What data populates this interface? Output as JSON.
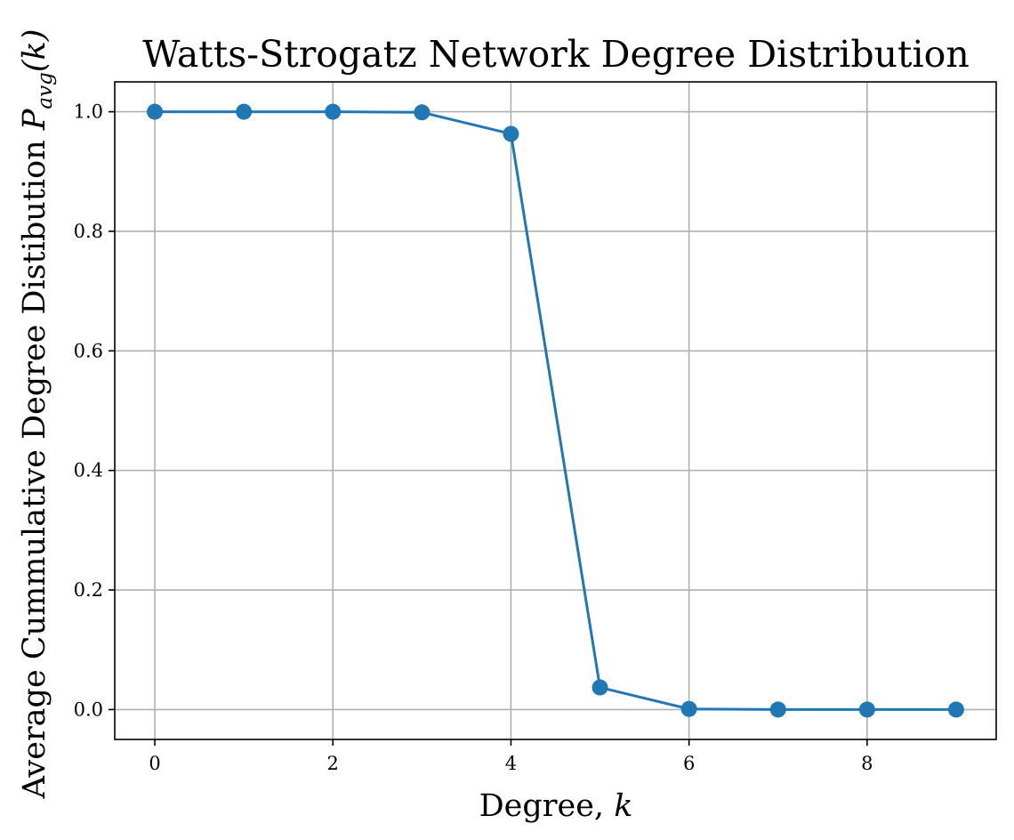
{
  "chart_data": {
    "type": "line",
    "title": "Watts-Strogatz Network Degree Distribution",
    "xlabel_prefix": "Degree, ",
    "xlabel_var": "k",
    "ylabel_prefix": "Average Cummulative Degree Distibution ",
    "ylabel_var": "P",
    "ylabel_sub": "avg",
    "ylabel_arg": "(k)",
    "x": [
      0,
      1,
      2,
      3,
      4,
      5,
      6,
      7,
      8,
      9
    ],
    "series": [
      {
        "values": [
          1.0,
          1.0,
          1.0,
          0.999,
          0.963,
          0.037,
          0.001,
          0.0,
          0.0,
          0.0
        ],
        "color": "#1f77b4",
        "marker": "circle"
      }
    ],
    "xlim": [
      -0.45,
      9.45
    ],
    "ylim": [
      -0.05,
      1.05
    ],
    "xticks": [
      0,
      2,
      4,
      6,
      8
    ],
    "xtick_labels": [
      "0",
      "2",
      "4",
      "6",
      "8"
    ],
    "yticks": [
      0.0,
      0.2,
      0.4,
      0.6,
      0.8,
      1.0
    ],
    "ytick_labels": [
      "0.0",
      "0.2",
      "0.4",
      "0.6",
      "0.8",
      "1.0"
    ],
    "grid": true,
    "grid_color": "#b0b0b0"
  }
}
